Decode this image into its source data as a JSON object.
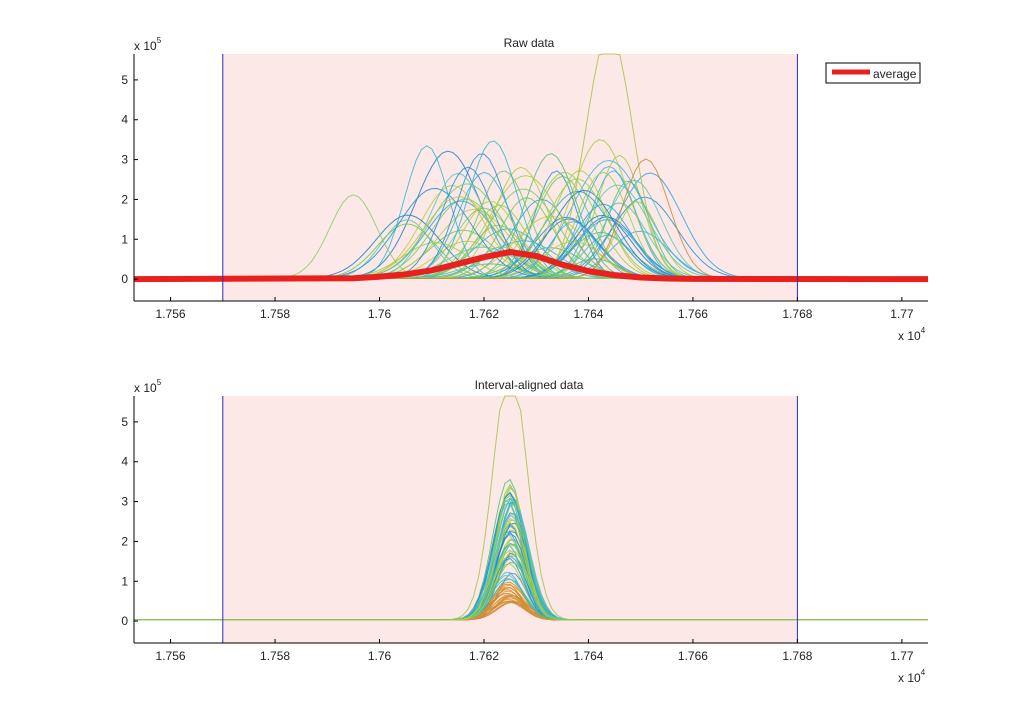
{
  "chart_data": [
    {
      "type": "line",
      "title": "Raw data",
      "xlim": [
        17553,
        17705
      ],
      "ylim": [
        -55000,
        565000
      ],
      "x_ticks": [
        17560,
        17580,
        17600,
        17620,
        17640,
        17660,
        17680,
        17700
      ],
      "x_tick_labels": [
        "1.756",
        "1.758",
        "1.76",
        "1.762",
        "1.764",
        "1.766",
        "1.768",
        "1.77"
      ],
      "y_ticks": [
        0,
        100000,
        200000,
        300000,
        400000,
        500000
      ],
      "y_tick_labels": [
        "0",
        "1",
        "2",
        "3",
        "4",
        "5"
      ],
      "x_multiplier": {
        "base": "x 10",
        "exp": "4"
      },
      "y_multiplier": {
        "base": "x 10",
        "exp": "5"
      },
      "highlight_interval": [
        17570,
        17680
      ],
      "legend": {
        "entries": [
          "average"
        ],
        "placement": "top-right"
      },
      "series_summary": {
        "num_traces": 70,
        "peak_center_range": [
          17605,
          17652
        ],
        "typical_peak_height_range": [
          30000,
          350000
        ],
        "outlier_peaks": [
          {
            "center": 17644,
            "height": 620000,
            "color": "#a6c24a"
          },
          {
            "center": 17595,
            "height": 210000,
            "color": "#8ccc6a"
          },
          {
            "center": 17651,
            "height": 300000,
            "color": "#c98a3a"
          }
        ]
      },
      "average": {
        "name": "average",
        "color": "#e8211f",
        "x": [
          17553,
          17595,
          17600,
          17605,
          17610,
          17615,
          17620,
          17625,
          17630,
          17635,
          17640,
          17645,
          17650,
          17655,
          17660,
          17705
        ],
        "y": [
          0,
          2000,
          6000,
          12000,
          22000,
          38000,
          55000,
          68000,
          58000,
          36000,
          20000,
          10000,
          4000,
          1500,
          500,
          0
        ]
      }
    },
    {
      "type": "line",
      "title": "Interval-aligned data",
      "xlim": [
        17553,
        17705
      ],
      "ylim": [
        -55000,
        565000
      ],
      "x_ticks": [
        17560,
        17580,
        17600,
        17620,
        17640,
        17660,
        17680,
        17700
      ],
      "x_tick_labels": [
        "1.756",
        "1.758",
        "1.76",
        "1.762",
        "1.764",
        "1.766",
        "1.768",
        "1.77"
      ],
      "y_ticks": [
        0,
        100000,
        200000,
        300000,
        400000,
        500000
      ],
      "y_tick_labels": [
        "0",
        "1",
        "2",
        "3",
        "4",
        "5"
      ],
      "x_multiplier": {
        "base": "x 10",
        "exp": "4"
      },
      "y_multiplier": {
        "base": "x 10",
        "exp": "5"
      },
      "highlight_interval": [
        17570,
        17680
      ],
      "series_summary": {
        "num_traces": 70,
        "aligned_peak_center": 17625,
        "peak_height_range": [
          40000,
          370000
        ],
        "outlier_peak": {
          "center": 17625,
          "height": 640000,
          "color": "#a6c24a"
        }
      }
    }
  ]
}
